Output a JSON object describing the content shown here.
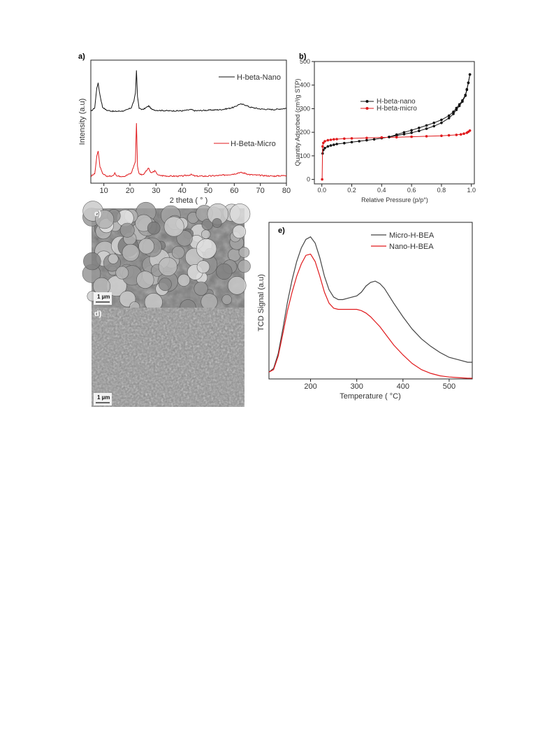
{
  "panels": {
    "a": {
      "label": "a)"
    },
    "b": {
      "label": "b)"
    },
    "c": {
      "label": "c)",
      "scale_bar": "1 µm"
    },
    "d": {
      "label": "d)",
      "scale_bar": "1 µm"
    },
    "e": {
      "label": "e)"
    }
  },
  "colors": {
    "black_series": "#111111",
    "red_series": "#e0191c",
    "gray_series": "#444444"
  },
  "chart_data": [
    {
      "id": "a",
      "type": "line",
      "xlabel": "2 theta ( ° )",
      "ylabel": "Intensity (a.u)",
      "xlim": [
        5,
        80
      ],
      "xticks": [
        10,
        20,
        30,
        40,
        50,
        60,
        70,
        80
      ],
      "grid": false,
      "legend_placement": "inline",
      "series": [
        {
          "name": "H-beta-Nano",
          "color": "#111111",
          "x": [
            5,
            6.5,
            7.3,
            7.8,
            8.5,
            9.5,
            11,
            14,
            18,
            20.5,
            21.5,
            22.1,
            22.5,
            22.9,
            23.5,
            25,
            27.2,
            28.5,
            30,
            35,
            40,
            43.5,
            45,
            50,
            55,
            58,
            60,
            62,
            64,
            66,
            70,
            75,
            80
          ],
          "y": [
            0.03,
            0.09,
            0.42,
            0.49,
            0.3,
            0.1,
            0.05,
            0.03,
            0.04,
            0.09,
            0.2,
            0.32,
            0.7,
            0.28,
            0.08,
            0.06,
            0.12,
            0.06,
            0.05,
            0.04,
            0.04,
            0.06,
            0.04,
            0.05,
            0.06,
            0.08,
            0.1,
            0.15,
            0.14,
            0.1,
            0.07,
            0.06,
            0.08
          ]
        },
        {
          "name": "H-Beta-Micro",
          "color": "#e0191c",
          "x": [
            5,
            6.5,
            7.3,
            7.8,
            8.5,
            9.5,
            11,
            13.5,
            14.2,
            15,
            18,
            20.5,
            21.5,
            22.1,
            22.5,
            22.9,
            23.5,
            25,
            26.5,
            27.2,
            28,
            29.5,
            31,
            35,
            40,
            43.5,
            45,
            50,
            55,
            60,
            62,
            64,
            66,
            70,
            75,
            80
          ],
          "y": [
            0.02,
            0.05,
            0.3,
            0.36,
            0.15,
            0.05,
            0.02,
            0.02,
            0.07,
            0.02,
            0.02,
            0.06,
            0.16,
            0.22,
            0.75,
            0.16,
            0.05,
            0.04,
            0.1,
            0.13,
            0.06,
            0.09,
            0.03,
            0.02,
            0.02,
            0.04,
            0.02,
            0.02,
            0.03,
            0.05,
            0.07,
            0.06,
            0.04,
            0.03,
            0.02,
            0.03
          ]
        }
      ]
    },
    {
      "id": "b",
      "type": "line",
      "xlabel": "Relative Pressure (p/p°)",
      "ylabel": "Quantity Adsorbed (cm³/g STP)",
      "xlim": [
        -0.05,
        1.02
      ],
      "ylim": [
        -10,
        500
      ],
      "xticks": [
        0.0,
        0.2,
        0.4,
        0.6,
        0.8,
        1.0
      ],
      "yticks": [
        0,
        100,
        200,
        300,
        400,
        500
      ],
      "grid": false,
      "legend_placement": "top-center",
      "series": [
        {
          "name": "H-beta-nano",
          "color": "#111111",
          "x": [
            0.005,
            0.01,
            0.02,
            0.04,
            0.06,
            0.08,
            0.1,
            0.15,
            0.2,
            0.25,
            0.3,
            0.35,
            0.4,
            0.45,
            0.5,
            0.55,
            0.6,
            0.65,
            0.7,
            0.75,
            0.8,
            0.85,
            0.88,
            0.9,
            0.92,
            0.94,
            0.96,
            0.97,
            0.98,
            0.99
          ],
          "y": [
            110,
            125,
            133,
            140,
            144,
            147,
            150,
            154,
            158,
            162,
            166,
            170,
            175,
            180,
            186,
            192,
            198,
            206,
            215,
            226,
            240,
            260,
            278,
            295,
            312,
            330,
            355,
            380,
            410,
            445
          ]
        },
        {
          "name": "H-beta-micro",
          "color": "#e0191c",
          "x": [
            0.002,
            0.005,
            0.01,
            0.02,
            0.04,
            0.06,
            0.08,
            0.1,
            0.15,
            0.2,
            0.3,
            0.4,
            0.5,
            0.6,
            0.7,
            0.8,
            0.85,
            0.9,
            0.93,
            0.95,
            0.97,
            0.98,
            0.99
          ],
          "y": [
            0,
            140,
            155,
            162,
            166,
            168,
            170,
            171,
            173,
            174,
            176,
            178,
            179,
            181,
            183,
            185,
            187,
            189,
            191,
            194,
            198,
            202,
            207
          ]
        }
      ]
    },
    {
      "id": "e",
      "type": "line",
      "xlabel": "Temperature ( °C)",
      "ylabel": "TCD Signal (a.u)",
      "xlim": [
        110,
        550
      ],
      "xticks": [
        200,
        300,
        400,
        500
      ],
      "grid": false,
      "legend_placement": "top-right",
      "series": [
        {
          "name": "Micro-H-BEA",
          "color": "#444444",
          "x": [
            110,
            120,
            130,
            140,
            150,
            160,
            170,
            180,
            190,
            200,
            210,
            220,
            230,
            240,
            250,
            260,
            270,
            280,
            290,
            300,
            310,
            320,
            330,
            340,
            350,
            360,
            370,
            380,
            400,
            420,
            440,
            460,
            480,
            500,
            520,
            540,
            550
          ],
          "y": [
            0.05,
            0.08,
            0.2,
            0.4,
            0.62,
            0.8,
            0.95,
            1.06,
            1.13,
            1.15,
            1.1,
            0.98,
            0.83,
            0.72,
            0.66,
            0.64,
            0.64,
            0.65,
            0.66,
            0.67,
            0.7,
            0.75,
            0.78,
            0.79,
            0.77,
            0.73,
            0.67,
            0.61,
            0.5,
            0.4,
            0.32,
            0.26,
            0.21,
            0.17,
            0.15,
            0.13,
            0.13
          ]
        },
        {
          "name": "Nano-H-BEA",
          "color": "#e0191c",
          "x": [
            110,
            120,
            130,
            140,
            150,
            160,
            170,
            180,
            190,
            200,
            210,
            220,
            230,
            240,
            250,
            260,
            270,
            280,
            290,
            300,
            310,
            320,
            330,
            340,
            350,
            360,
            370,
            380,
            400,
            420,
            440,
            460,
            480,
            500,
            520,
            540,
            550
          ],
          "y": [
            0.05,
            0.07,
            0.18,
            0.36,
            0.55,
            0.7,
            0.83,
            0.93,
            1.0,
            1.01,
            0.95,
            0.83,
            0.7,
            0.61,
            0.57,
            0.56,
            0.56,
            0.56,
            0.56,
            0.56,
            0.55,
            0.53,
            0.5,
            0.46,
            0.42,
            0.37,
            0.32,
            0.27,
            0.19,
            0.12,
            0.07,
            0.04,
            0.02,
            0.01,
            0.005,
            0.0,
            0.0
          ]
        }
      ]
    }
  ]
}
